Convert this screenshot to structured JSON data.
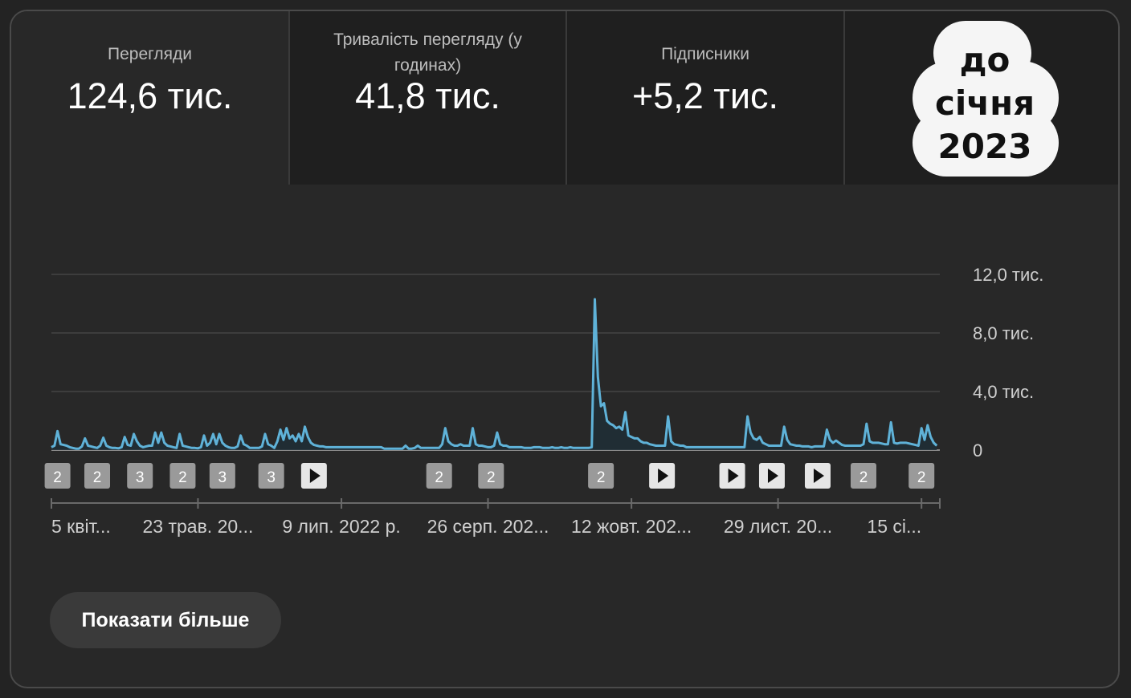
{
  "metrics": {
    "views": {
      "label": "Перегляди",
      "value": "124,6 тис."
    },
    "watch_time": {
      "label": "Тривалість перегляду (у годинах)",
      "value": "41,8 тис."
    },
    "subscribers": {
      "label": "Підписники",
      "value": "+5,2 тис."
    }
  },
  "badge": {
    "line1": "до",
    "line2": "січня",
    "line3": "2023"
  },
  "show_more_label": "Показати більше",
  "colors": {
    "line": "#5fb2d8",
    "grid": "#444444",
    "card": "#282828",
    "tab_inactive": "#1f1f1f",
    "marker": "#9a9a9a"
  },
  "chart_data": {
    "type": "line",
    "title": "",
    "ylim": [
      0,
      12000
    ],
    "yticks": [
      {
        "value": 0,
        "label": "0"
      },
      {
        "value": 4000,
        "label": "4,0 тис."
      },
      {
        "value": 8000,
        "label": "8,0 тис."
      },
      {
        "value": 12000,
        "label": "12,0 тис."
      }
    ],
    "xticks": [
      {
        "day": 0,
        "label": "5 квіт..."
      },
      {
        "day": 48,
        "label": "23 трав. 20..."
      },
      {
        "day": 95,
        "label": "9 лип. 2022 р."
      },
      {
        "day": 143,
        "label": "26 серп. 202..."
      },
      {
        "day": 190,
        "label": "12 жовт. 202..."
      },
      {
        "day": 238,
        "label": "29 лист. 20..."
      },
      {
        "day": 285,
        "label": "15 сі..."
      }
    ],
    "series": [
      {
        "values": [
          [
            0,
            200
          ],
          [
            1,
            300
          ],
          [
            2,
            1300
          ],
          [
            3,
            400
          ],
          [
            4,
            350
          ],
          [
            5,
            300
          ],
          [
            6,
            200
          ],
          [
            7,
            150
          ],
          [
            8,
            100
          ],
          [
            9,
            100
          ],
          [
            10,
            250
          ],
          [
            11,
            800
          ],
          [
            12,
            300
          ],
          [
            13,
            250
          ],
          [
            14,
            200
          ],
          [
            15,
            150
          ],
          [
            16,
            300
          ],
          [
            17,
            850
          ],
          [
            18,
            300
          ],
          [
            19,
            200
          ],
          [
            20,
            150
          ],
          [
            21,
            150
          ],
          [
            22,
            120
          ],
          [
            23,
            200
          ],
          [
            24,
            900
          ],
          [
            25,
            350
          ],
          [
            26,
            300
          ],
          [
            27,
            1100
          ],
          [
            28,
            600
          ],
          [
            29,
            300
          ],
          [
            30,
            200
          ],
          [
            31,
            250
          ],
          [
            32,
            300
          ],
          [
            33,
            300
          ],
          [
            34,
            1200
          ],
          [
            35,
            500
          ],
          [
            36,
            1200
          ],
          [
            37,
            500
          ],
          [
            38,
            300
          ],
          [
            39,
            250
          ],
          [
            40,
            200
          ],
          [
            41,
            150
          ],
          [
            42,
            1100
          ],
          [
            43,
            300
          ],
          [
            44,
            250
          ],
          [
            45,
            200
          ],
          [
            46,
            150
          ],
          [
            47,
            150
          ],
          [
            48,
            120
          ],
          [
            49,
            200
          ],
          [
            50,
            1000
          ],
          [
            51,
            300
          ],
          [
            52,
            500
          ],
          [
            53,
            1100
          ],
          [
            54,
            400
          ],
          [
            55,
            1100
          ],
          [
            56,
            500
          ],
          [
            57,
            300
          ],
          [
            58,
            200
          ],
          [
            59,
            150
          ],
          [
            60,
            150
          ],
          [
            61,
            250
          ],
          [
            62,
            1000
          ],
          [
            63,
            400
          ],
          [
            64,
            300
          ],
          [
            65,
            150
          ],
          [
            66,
            150
          ],
          [
            67,
            150
          ],
          [
            68,
            150
          ],
          [
            69,
            250
          ],
          [
            70,
            1100
          ],
          [
            71,
            400
          ],
          [
            72,
            300
          ],
          [
            73,
            150
          ],
          [
            74,
            600
          ],
          [
            75,
            1400
          ],
          [
            76,
            700
          ],
          [
            77,
            1500
          ],
          [
            78,
            800
          ],
          [
            79,
            1000
          ],
          [
            80,
            600
          ],
          [
            81,
            1100
          ],
          [
            82,
            600
          ],
          [
            83,
            1600
          ],
          [
            84,
            900
          ],
          [
            85,
            500
          ],
          [
            86,
            350
          ],
          [
            87,
            300
          ],
          [
            88,
            250
          ],
          [
            89,
            250
          ],
          [
            90,
            200
          ],
          [
            91,
            200
          ],
          [
            92,
            200
          ],
          [
            93,
            200
          ],
          [
            94,
            200
          ],
          [
            95,
            200
          ],
          [
            96,
            200
          ],
          [
            97,
            200
          ],
          [
            98,
            200
          ],
          [
            99,
            200
          ],
          [
            100,
            200
          ],
          [
            101,
            200
          ],
          [
            102,
            200
          ],
          [
            103,
            200
          ],
          [
            104,
            200
          ],
          [
            105,
            200
          ],
          [
            106,
            200
          ],
          [
            107,
            200
          ],
          [
            108,
            200
          ],
          [
            109,
            100
          ],
          [
            110,
            100
          ],
          [
            111,
            100
          ],
          [
            112,
            100
          ],
          [
            113,
            100
          ],
          [
            114,
            100
          ],
          [
            115,
            100
          ],
          [
            116,
            300
          ],
          [
            117,
            100
          ],
          [
            118,
            100
          ],
          [
            119,
            150
          ],
          [
            120,
            300
          ],
          [
            121,
            150
          ],
          [
            122,
            150
          ],
          [
            123,
            150
          ],
          [
            124,
            150
          ],
          [
            125,
            150
          ],
          [
            126,
            150
          ],
          [
            127,
            150
          ],
          [
            128,
            400
          ],
          [
            129,
            1500
          ],
          [
            130,
            600
          ],
          [
            131,
            400
          ],
          [
            132,
            300
          ],
          [
            133,
            300
          ],
          [
            134,
            400
          ],
          [
            135,
            300
          ],
          [
            136,
            300
          ],
          [
            137,
            300
          ],
          [
            138,
            1500
          ],
          [
            139,
            400
          ],
          [
            140,
            300
          ],
          [
            141,
            300
          ],
          [
            142,
            250
          ],
          [
            143,
            200
          ],
          [
            144,
            200
          ],
          [
            145,
            300
          ],
          [
            146,
            1200
          ],
          [
            147,
            400
          ],
          [
            148,
            300
          ],
          [
            149,
            300
          ],
          [
            150,
            200
          ],
          [
            151,
            200
          ],
          [
            152,
            200
          ],
          [
            153,
            200
          ],
          [
            154,
            200
          ],
          [
            155,
            150
          ],
          [
            156,
            150
          ],
          [
            157,
            150
          ],
          [
            158,
            200
          ],
          [
            159,
            200
          ],
          [
            160,
            200
          ],
          [
            161,
            150
          ],
          [
            162,
            150
          ],
          [
            163,
            150
          ],
          [
            164,
            200
          ],
          [
            165,
            150
          ],
          [
            166,
            150
          ],
          [
            167,
            200
          ],
          [
            168,
            150
          ],
          [
            169,
            150
          ],
          [
            170,
            200
          ],
          [
            171,
            150
          ],
          [
            172,
            150
          ],
          [
            173,
            150
          ],
          [
            174,
            150
          ],
          [
            175,
            150
          ],
          [
            176,
            150
          ],
          [
            177,
            200
          ],
          [
            178,
            10300
          ],
          [
            179,
            5000
          ],
          [
            180,
            3000
          ],
          [
            181,
            3200
          ],
          [
            182,
            2000
          ],
          [
            183,
            1800
          ],
          [
            184,
            1700
          ],
          [
            185,
            1500
          ],
          [
            186,
            1600
          ],
          [
            187,
            1400
          ],
          [
            188,
            2600
          ],
          [
            189,
            1000
          ],
          [
            190,
            900
          ],
          [
            191,
            800
          ],
          [
            192,
            800
          ],
          [
            193,
            600
          ],
          [
            194,
            500
          ],
          [
            195,
            500
          ],
          [
            196,
            400
          ],
          [
            197,
            350
          ],
          [
            198,
            300
          ],
          [
            199,
            300
          ],
          [
            200,
            300
          ],
          [
            201,
            300
          ],
          [
            202,
            2300
          ],
          [
            203,
            600
          ],
          [
            204,
            400
          ],
          [
            205,
            350
          ],
          [
            206,
            300
          ],
          [
            207,
            300
          ],
          [
            208,
            200
          ],
          [
            209,
            200
          ],
          [
            210,
            200
          ],
          [
            211,
            200
          ],
          [
            212,
            200
          ],
          [
            213,
            200
          ],
          [
            214,
            200
          ],
          [
            215,
            200
          ],
          [
            216,
            200
          ],
          [
            217,
            200
          ],
          [
            218,
            200
          ],
          [
            219,
            200
          ],
          [
            220,
            200
          ],
          [
            221,
            200
          ],
          [
            222,
            200
          ],
          [
            223,
            200
          ],
          [
            224,
            200
          ],
          [
            225,
            200
          ],
          [
            226,
            200
          ],
          [
            227,
            200
          ],
          [
            228,
            2300
          ],
          [
            229,
            1200
          ],
          [
            230,
            800
          ],
          [
            231,
            700
          ],
          [
            232,
            900
          ],
          [
            233,
            500
          ],
          [
            234,
            400
          ],
          [
            235,
            300
          ],
          [
            236,
            300
          ],
          [
            237,
            300
          ],
          [
            238,
            300
          ],
          [
            239,
            300
          ],
          [
            240,
            1600
          ],
          [
            241,
            700
          ],
          [
            242,
            400
          ],
          [
            243,
            350
          ],
          [
            244,
            300
          ],
          [
            245,
            300
          ],
          [
            246,
            250
          ],
          [
            247,
            250
          ],
          [
            248,
            250
          ],
          [
            249,
            200
          ],
          [
            250,
            250
          ],
          [
            251,
            250
          ],
          [
            252,
            250
          ],
          [
            253,
            250
          ],
          [
            254,
            1400
          ],
          [
            255,
            700
          ],
          [
            256,
            500
          ],
          [
            257,
            650
          ],
          [
            258,
            500
          ],
          [
            259,
            350
          ],
          [
            260,
            300
          ],
          [
            261,
            300
          ],
          [
            262,
            300
          ],
          [
            263,
            300
          ],
          [
            264,
            300
          ],
          [
            265,
            300
          ],
          [
            266,
            400
          ],
          [
            267,
            1800
          ],
          [
            268,
            600
          ],
          [
            269,
            500
          ],
          [
            270,
            500
          ],
          [
            271,
            500
          ],
          [
            272,
            450
          ],
          [
            273,
            400
          ],
          [
            274,
            400
          ],
          [
            275,
            1900
          ],
          [
            276,
            500
          ],
          [
            277,
            450
          ],
          [
            278,
            500
          ],
          [
            279,
            500
          ],
          [
            280,
            500
          ],
          [
            281,
            450
          ],
          [
            282,
            400
          ],
          [
            283,
            350
          ],
          [
            284,
            300
          ],
          [
            285,
            1500
          ],
          [
            286,
            700
          ],
          [
            287,
            1700
          ],
          [
            288,
            900
          ],
          [
            289,
            500
          ],
          [
            290,
            300
          ]
        ]
      }
    ],
    "markers": [
      {
        "day": 2,
        "label": "2"
      },
      {
        "day": 15,
        "label": "2"
      },
      {
        "day": 29,
        "label": "3"
      },
      {
        "day": 43,
        "label": "2"
      },
      {
        "day": 56,
        "label": "3"
      },
      {
        "day": 72,
        "label": "3"
      },
      {
        "day": 86,
        "label": "play-icon"
      },
      {
        "day": 127,
        "label": "2"
      },
      {
        "day": 144,
        "label": "2"
      },
      {
        "day": 180,
        "label": "2"
      },
      {
        "day": 200,
        "label": "play-icon"
      },
      {
        "day": 223,
        "label": "play-icon"
      },
      {
        "day": 236,
        "label": "play-icon"
      },
      {
        "day": 251,
        "label": "play-icon"
      },
      {
        "day": 266,
        "label": "2"
      },
      {
        "day": 285,
        "label": "2"
      }
    ],
    "grid": true
  }
}
